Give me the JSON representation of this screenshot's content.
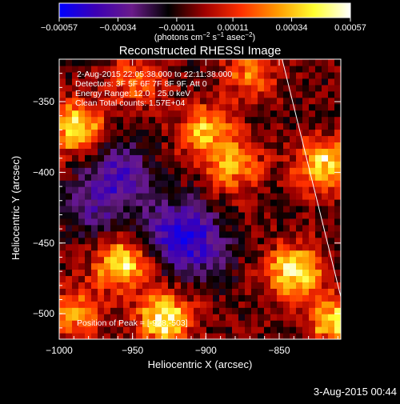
{
  "chart_data": {
    "type": "heatmap",
    "title": "Reconstructed RHESSI Image",
    "xlabel": "Heliocentric X (arcsec)",
    "ylabel": "Heliocentric Y (arcsec)",
    "xlim": [
      -1000,
      -808
    ],
    "ylim": [
      -518,
      -320
    ],
    "x_ticks": [
      -1000,
      -950,
      -900,
      -850
    ],
    "x_tick_labels": [
      "−1000",
      "−950",
      "−900",
      "−850"
    ],
    "y_ticks": [
      -350,
      -400,
      -450,
      -500
    ],
    "y_tick_labels": [
      "−350",
      "−400",
      "−450",
      "−500"
    ],
    "colorbar": {
      "min": -0.00057,
      "max": 0.00057,
      "ticks": [
        -0.00057,
        -0.00034,
        -0.00011,
        0.00011,
        0.00034,
        0.00057
      ],
      "tick_labels": [
        "−0.00057",
        "−0.00034",
        "−0.00011",
        "0.00011",
        "0.00034",
        "0.00057"
      ],
      "label_main": "(photons cm",
      "label_sup1": "−2",
      "label_mid": " s",
      "label_sup2": "−1",
      "label_mid2": " asec",
      "label_sup3": "−2",
      "label_end": ")",
      "colors": [
        "#0000ff",
        "#3c00b4",
        "#6a1b8a",
        "#000000",
        "#a00000",
        "#ff3000",
        "#ff9a00",
        "#ffff30",
        "#ffffff"
      ]
    },
    "annotations": {
      "time_range": "2-Aug-2015 22:05:38.000 to 22:11:38.000",
      "detectors": "Detectors: 3F 5F 6F 7F 8F 9F, Att 0",
      "energy": "Energy Range: 12.0 - 25.0 keV",
      "clean": "Clean     Total counts: 1.57E+04",
      "peak": "Position of Peak = [-928,-503]"
    },
    "limb_line": {
      "x": [
        -848,
        -808
      ],
      "y": [
        -320,
        -488
      ]
    },
    "sources": [
      {
        "x": -988,
        "y": -368,
        "intensity": 0.9
      },
      {
        "x": -948,
        "y": -335,
        "intensity": 0.5
      },
      {
        "x": -958,
        "y": -465,
        "intensity": 0.85
      },
      {
        "x": -928,
        "y": -503,
        "intensity": 1.0
      },
      {
        "x": -900,
        "y": -370,
        "intensity": 0.7
      },
      {
        "x": -880,
        "y": -395,
        "intensity": 0.65
      },
      {
        "x": -840,
        "y": -470,
        "intensity": 0.95
      },
      {
        "x": -820,
        "y": -395,
        "intensity": 0.9
      },
      {
        "x": -812,
        "y": -505,
        "intensity": 0.8
      },
      {
        "x": -990,
        "y": -500,
        "intensity": 0.6
      },
      {
        "x": -870,
        "y": -330,
        "intensity": 0.5
      }
    ],
    "negatives": [
      {
        "x": -960,
        "y": -400,
        "intensity": 0.5
      },
      {
        "x": -920,
        "y": -440,
        "intensity": 0.6
      },
      {
        "x": -905,
        "y": -455,
        "intensity": 0.4
      },
      {
        "x": -975,
        "y": -425,
        "intensity": 0.35
      }
    ]
  },
  "footer": {
    "datetime": "3-Aug-2015 00:44"
  }
}
